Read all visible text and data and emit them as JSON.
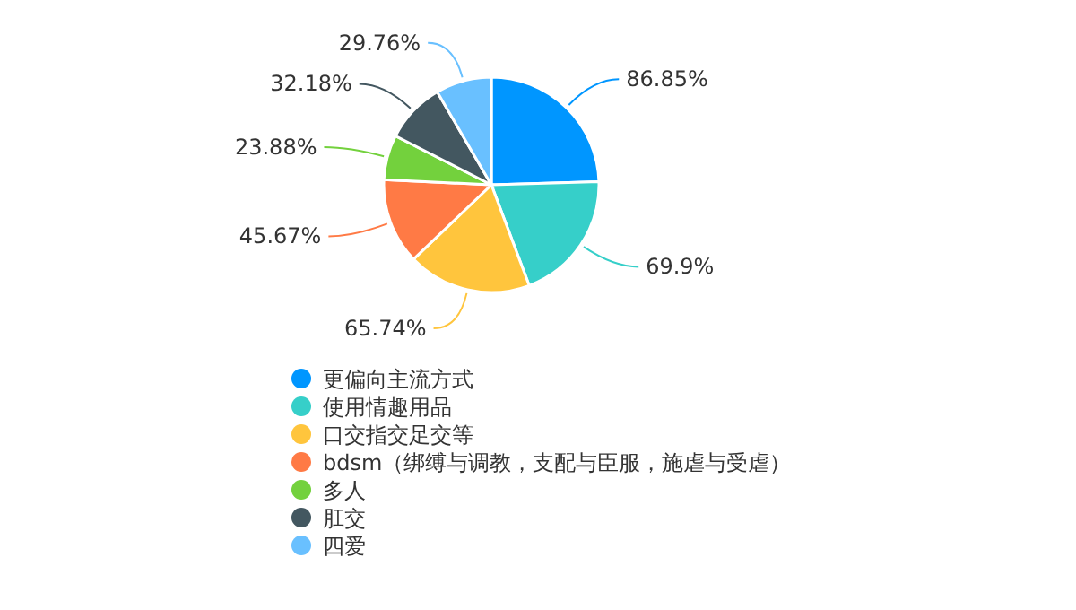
{
  "chart_data": {
    "type": "pie",
    "categories": [
      "更偏向主流方式",
      "使用情趣用品",
      "口交指交足交等",
      "bdsm（绑缚与调教，支配与臣服，施虐与受虐）",
      "多人",
      "肛交",
      "四爱"
    ],
    "values": [
      86.85,
      69.9,
      65.74,
      45.67,
      23.88,
      32.18,
      29.76
    ],
    "value_labels": [
      "86.85%",
      "69.9%",
      "65.74%",
      "45.67%",
      "23.88%",
      "32.18%",
      "29.76%"
    ],
    "colors": [
      "#0096ff",
      "#36cfc9",
      "#ffc53d",
      "#ff7a45",
      "#73d13d",
      "#435760",
      "#69c0ff"
    ],
    "legend": "bottom"
  }
}
